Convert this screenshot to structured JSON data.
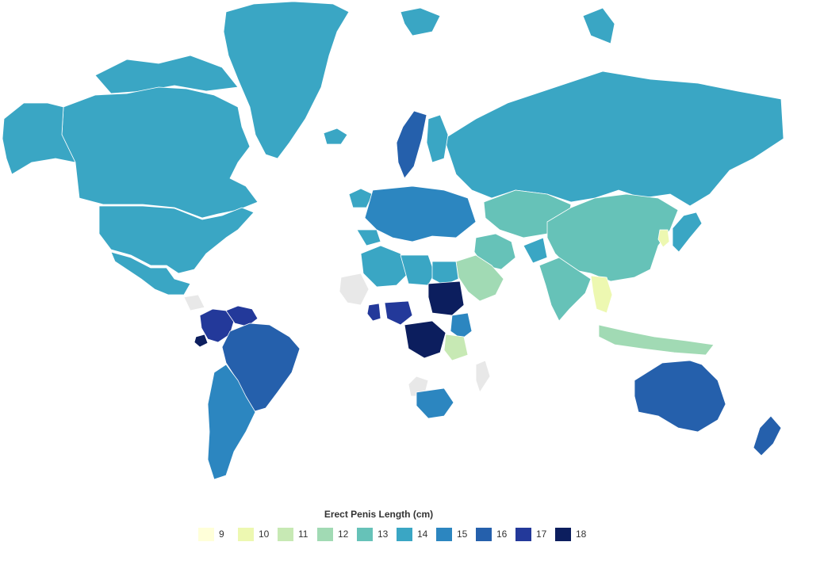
{
  "legend": {
    "title": "Erect Penis Length (cm)",
    "items": [
      {
        "label": "9",
        "value": 9,
        "color": "#ffffd9"
      },
      {
        "label": "10",
        "value": 10,
        "color": "#edf8b1"
      },
      {
        "label": "11",
        "value": 11,
        "color": "#c7e9b4"
      },
      {
        "label": "12",
        "value": 12,
        "color": "#a1dab4"
      },
      {
        "label": "13",
        "value": 13,
        "color": "#66c2b8"
      },
      {
        "label": "14",
        "value": 14,
        "color": "#3aa6c4"
      },
      {
        "label": "15",
        "value": 15,
        "color": "#2c86c0"
      },
      {
        "label": "16",
        "value": 16,
        "color": "#2560ac"
      },
      {
        "label": "17",
        "value": 17,
        "color": "#23399a"
      },
      {
        "label": "18",
        "value": 18,
        "color": "#0c1e5e"
      }
    ]
  },
  "no_data_color": "#e8e8e8",
  "regions": [
    {
      "name": "Greenland",
      "value": 14
    },
    {
      "name": "Canada",
      "value": 14
    },
    {
      "name": "Alaska",
      "value": 14
    },
    {
      "name": "United States",
      "value": 14
    },
    {
      "name": "Mexico",
      "value": 14
    },
    {
      "name": "Colombia",
      "value": 17
    },
    {
      "name": "Ecuador",
      "value": 18
    },
    {
      "name": "Venezuela",
      "value": 17
    },
    {
      "name": "Brazil",
      "value": 16
    },
    {
      "name": "Argentina",
      "value": 15
    },
    {
      "name": "Russia",
      "value": 14
    },
    {
      "name": "China",
      "value": 13
    },
    {
      "name": "India",
      "value": 13
    },
    {
      "name": "Saudi Arabia",
      "value": 12
    },
    {
      "name": "Thailand",
      "value": 10
    },
    {
      "name": "Sudan",
      "value": 18
    },
    {
      "name": "DR Congo",
      "value": 18
    },
    {
      "name": "Australia",
      "value": 16
    },
    {
      "name": "New Zealand",
      "value": 16
    },
    {
      "name": "Sweden",
      "value": 16
    },
    {
      "name": "Finland",
      "value": 14
    },
    {
      "name": "Japan",
      "value": 14
    },
    {
      "name": "South Korea",
      "value": 10
    },
    {
      "name": "Indonesia",
      "value": 12
    },
    {
      "name": "South Africa",
      "value": 15
    },
    {
      "name": "Ghana",
      "value": 17
    },
    {
      "name": "Cameroon",
      "value": 17
    },
    {
      "name": "Kenya",
      "value": 15
    },
    {
      "name": "Tanzania",
      "value": 11
    },
    {
      "name": "Algeria",
      "value": 14
    },
    {
      "name": "Egypt",
      "value": 14
    },
    {
      "name": "Libya",
      "value": 14
    },
    {
      "name": "Iceland",
      "value": 14
    },
    {
      "name": "Kazakhstan",
      "value": 13
    },
    {
      "name": "Iran",
      "value": 13
    }
  ]
}
